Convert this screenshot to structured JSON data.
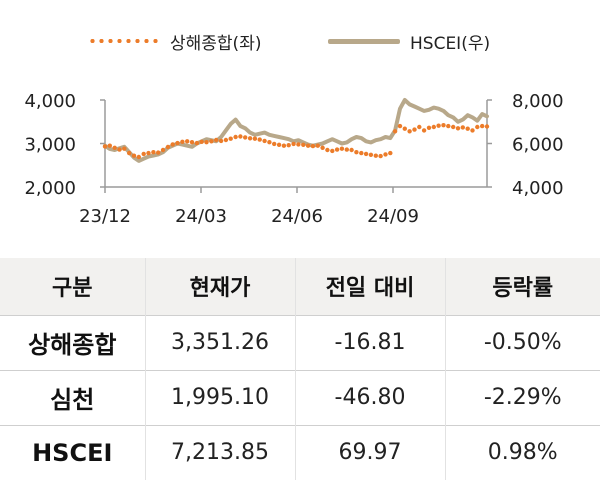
{
  "chart_data": {
    "type": "line",
    "x_ticks": [
      "23/12",
      "24/03",
      "24/06",
      "24/09"
    ],
    "y_left_ticks": [
      "2,000",
      "3,000",
      "4,000"
    ],
    "y_right_ticks": [
      "4,000",
      "6,000",
      "8,000"
    ],
    "y_left_lim": [
      2000,
      4000
    ],
    "y_right_lim": [
      4000,
      8000
    ],
    "series": [
      {
        "name": "상해종합(좌)",
        "axis": "left",
        "style": "dotted",
        "color": "#ec7c2a",
        "values": [
          2930,
          2950,
          2900,
          2860,
          2880,
          2780,
          2720,
          2690,
          2760,
          2780,
          2800,
          2790,
          2850,
          2920,
          2980,
          3010,
          3040,
          3050,
          3030,
          3010,
          3040,
          3030,
          3050,
          3080,
          3060,
          3080,
          3110,
          3150,
          3160,
          3140,
          3120,
          3110,
          3090,
          3060,
          3030,
          2990,
          2970,
          2950,
          2960,
          2990,
          2980,
          2970,
          2950,
          2940,
          2950,
          2900,
          2850,
          2830,
          2860,
          2880,
          2860,
          2850,
          2800,
          2780,
          2760,
          2740,
          2720,
          2710,
          2750,
          2780,
          3280,
          3400,
          3340,
          3280,
          3320,
          3380,
          3300,
          3360,
          3380,
          3410,
          3420,
          3400,
          3380,
          3350,
          3370,
          3340,
          3300,
          3380,
          3400,
          3390
        ]
      },
      {
        "name": "HSCEI(우)",
        "axis": "right",
        "style": "solid",
        "color": "#b8a88a",
        "values": [
          5900,
          5750,
          5700,
          5780,
          5850,
          5600,
          5350,
          5200,
          5300,
          5400,
          5450,
          5500,
          5600,
          5800,
          5900,
          6000,
          5950,
          5900,
          5850,
          6000,
          6100,
          6200,
          6150,
          6100,
          6300,
          6600,
          6900,
          7100,
          6800,
          6700,
          6500,
          6400,
          6450,
          6500,
          6400,
          6350,
          6300,
          6250,
          6200,
          6100,
          6150,
          6050,
          5950,
          5900,
          5950,
          6000,
          6100,
          6200,
          6100,
          6000,
          6050,
          6200,
          6300,
          6250,
          6100,
          6050,
          6150,
          6200,
          6300,
          6250,
          6600,
          7600,
          8000,
          7800,
          7700,
          7600,
          7500,
          7550,
          7650,
          7600,
          7500,
          7300,
          7200,
          7000,
          7100,
          7300,
          7200,
          7050,
          7350,
          7250
        ]
      }
    ]
  },
  "table": {
    "headers": [
      "구분",
      "현재가",
      "전일 대비",
      "등락률"
    ],
    "rows": [
      {
        "name": "상해종합",
        "price": "3,351.26",
        "change": "-16.81",
        "rate": "-0.50%"
      },
      {
        "name": "심천",
        "price": "1,995.10",
        "change": "-46.80",
        "rate": "-2.29%"
      },
      {
        "name": "HSCEI",
        "price": "7,213.85",
        "change": "69.97",
        "rate": "0.98%"
      }
    ]
  }
}
